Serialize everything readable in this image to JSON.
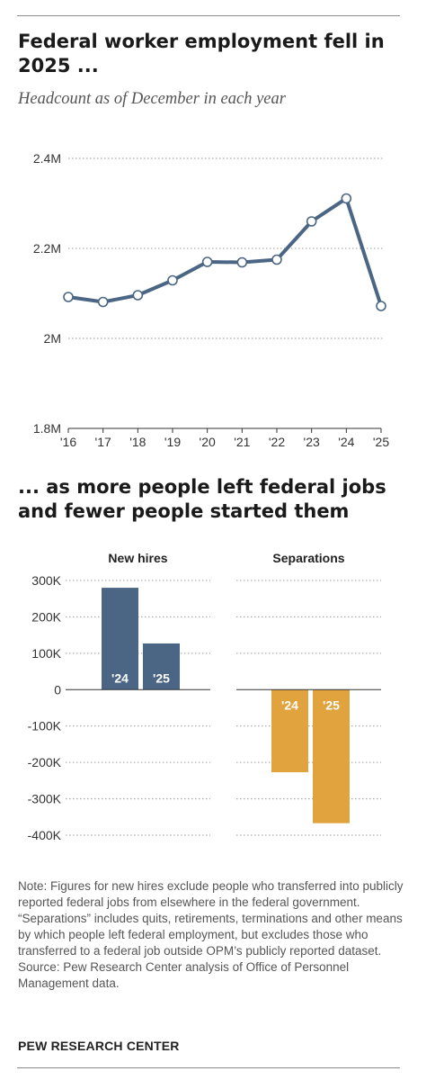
{
  "top_title": "Federal worker employment fell in 2025 ...",
  "subtitle": "Headcount as of December in each year",
  "second_title": "... as more people left federal jobs and fewer people started them",
  "note": "Note: Figures for new hires exclude people who transferred into publicly reported federal jobs from elsewhere in the federal government. “Separations” includes quits, retirements, terminations and other means by which people left federal employment, but excludes those who transferred to a federal job outside OPM’s publicly reported dataset.",
  "source": "Source: Pew Research Center analysis of Office of Personnel Management data.",
  "brand": "PEW RESEARCH CENTER",
  "colors": {
    "line": "#4a6684",
    "new_hires": "#4a6684",
    "separations": "#e0a33e",
    "grid": "#9a9a9a"
  },
  "chart_data": [
    {
      "type": "line",
      "title": "Federal worker employment fell in 2025 ...",
      "subtitle": "Headcount as of December in each year",
      "x": [
        "'16",
        "'17",
        "'18",
        "'19",
        "'20",
        "'21",
        "'22",
        "'23",
        "'24",
        "'25"
      ],
      "series": [
        {
          "values": [
            2092000,
            2081000,
            2096000,
            2129000,
            2170000,
            2169000,
            2175000,
            2260000,
            2311000,
            2072000
          ]
        }
      ],
      "y_ticks": [
        "1.8M",
        "2M",
        "2.2M",
        "2.4M"
      ],
      "ylim": [
        1800000,
        2400000
      ],
      "grid": true,
      "legend": "none"
    },
    {
      "type": "bar",
      "title": "... as more people left federal jobs and fewer people started them",
      "y_ticks": [
        "300K",
        "200K",
        "100K",
        "0",
        "-100K",
        "-200K",
        "-300K",
        "-400K"
      ],
      "ylim": [
        -400000,
        300000
      ],
      "grid": true,
      "panels": [
        {
          "name": "New hires",
          "categories": [
            "'24",
            "'25"
          ],
          "values": [
            280000,
            127000
          ]
        },
        {
          "name": "Separations",
          "categories": [
            "'24",
            "'25"
          ],
          "values": [
            -227000,
            -367000
          ]
        }
      ]
    }
  ]
}
